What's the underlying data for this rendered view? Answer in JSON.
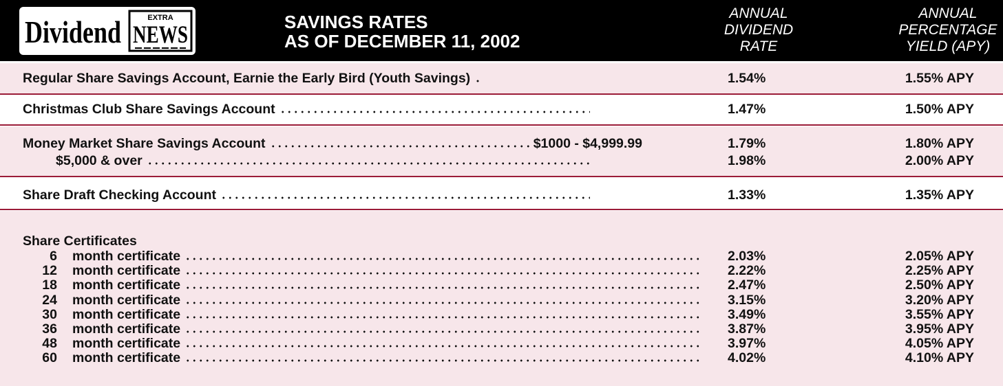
{
  "header": {
    "logo": {
      "word": "Dividend",
      "badge": "EXTRA",
      "news": "NEWS"
    },
    "title": [
      "SAVINGS RATES",
      "AS OF DECEMBER 11, 2002"
    ],
    "columns": [
      [
        "ANNUAL",
        "DIVIDEND",
        "RATE"
      ],
      [
        "ANNUAL",
        "PERCENTAGE",
        "YIELD (APY)"
      ]
    ]
  },
  "accounts": [
    {
      "name": "Regular Share Savings Account, Earnie the Early Bird (Youth Savings)",
      "rate": "1.54%",
      "apy": "1.55% APY"
    },
    {
      "name": "Christmas Club Share Savings Account",
      "rate": "1.47%",
      "apy": "1.50% APY"
    },
    {
      "name": "Money Market Share Savings Account",
      "tiers": [
        {
          "label": "$1000 - $4,999.99",
          "rate": "1.79%",
          "apy": "1.80% APY"
        },
        {
          "label": "$5,000 & over",
          "rate": "1.98%",
          "apy": "2.00% APY"
        }
      ]
    },
    {
      "name": "Share Draft Checking Account",
      "rate": "1.33%",
      "apy": "1.35% APY"
    }
  ],
  "certificates": {
    "title": "Share Certificates",
    "items": [
      {
        "term": "6",
        "label": "month certificate",
        "rate": "2.03%",
        "apy": "2.05% APY"
      },
      {
        "term": "12",
        "label": "month certificate",
        "rate": "2.22%",
        "apy": "2.25% APY"
      },
      {
        "term": "18",
        "label": "month certificate",
        "rate": "2.47%",
        "apy": "2.50% APY"
      },
      {
        "term": "24",
        "label": "month certificate",
        "rate": "3.15%",
        "apy": "3.20% APY"
      },
      {
        "term": "30",
        "label": "month certificate",
        "rate": "3.49%",
        "apy": "3.55% APY"
      },
      {
        "term": "36",
        "label": "month certificate",
        "rate": "3.87%",
        "apy": "3.95% APY"
      },
      {
        "term": "48",
        "label": "month certificate",
        "rate": "3.97%",
        "apy": "4.05% APY"
      },
      {
        "term": "60",
        "label": "month certificate",
        "rate": "4.02%",
        "apy": "4.10% APY"
      }
    ]
  }
}
